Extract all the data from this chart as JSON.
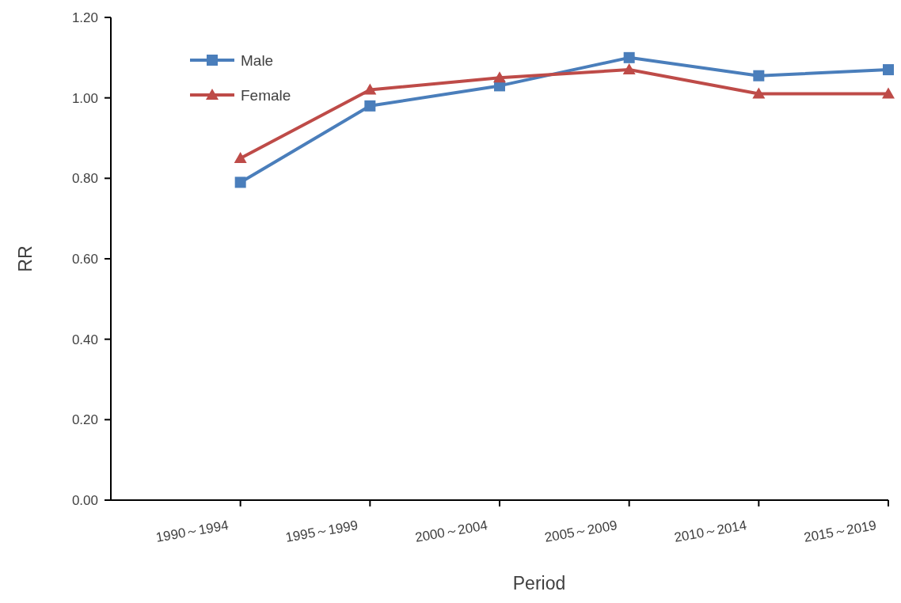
{
  "chart_data": {
    "type": "line",
    "xlabel": "Period",
    "ylabel": "RR",
    "categories": [
      "1990～1994",
      "1995～1999",
      "2000～2004",
      "2005～2009",
      "2010～2014",
      "2015～2019"
    ],
    "series": [
      {
        "name": "Male",
        "color": "#4a7ebb",
        "marker": "square",
        "values": [
          0.79,
          0.98,
          1.03,
          1.1,
          1.055,
          1.07
        ]
      },
      {
        "name": "Female",
        "color": "#be4b48",
        "marker": "triangle",
        "values": [
          0.85,
          1.02,
          1.05,
          1.07,
          1.01,
          1.01
        ]
      }
    ],
    "ylim": [
      0,
      1.2
    ],
    "yticks": [
      {
        "value": 0,
        "label": "0.00"
      },
      {
        "value": 0.2,
        "label": "0.20"
      },
      {
        "value": 0.4,
        "label": "0.40"
      },
      {
        "value": 0.6,
        "label": "0.60"
      },
      {
        "value": 0.8,
        "label": "0.80"
      },
      {
        "value": 1.0,
        "label": "1.00"
      },
      {
        "value": 1.2,
        "label": "1.20"
      }
    ],
    "grid": false,
    "legend": "top left",
    "line_style": "solid"
  }
}
